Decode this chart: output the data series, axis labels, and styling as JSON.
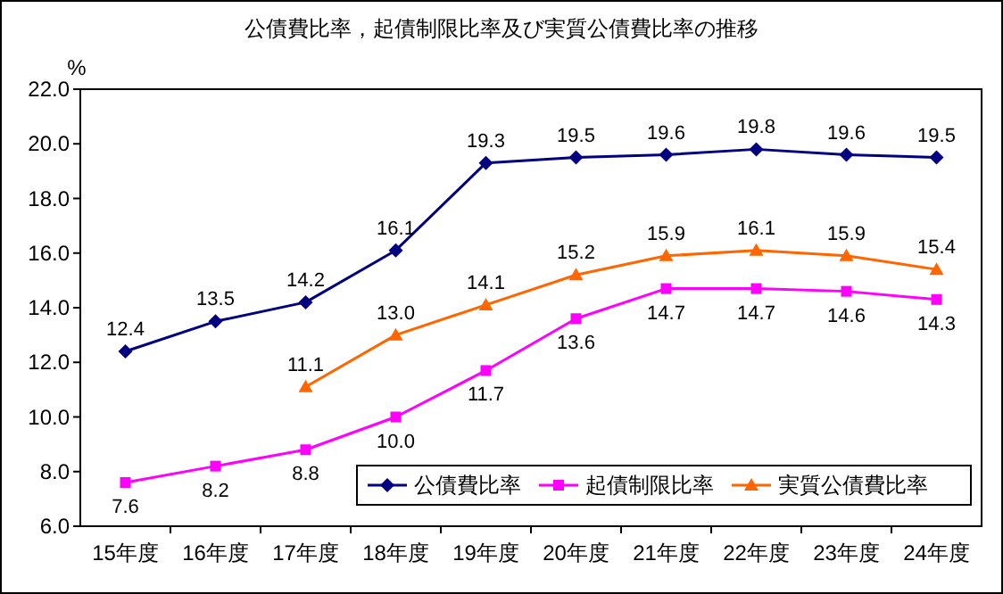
{
  "chart_data": {
    "type": "line",
    "title": "公債費比率，起債制限比率及び実質公債費比率の推移",
    "ylabel": "%",
    "categories": [
      "15年度",
      "16年度",
      "17年度",
      "18年度",
      "19年度",
      "20年度",
      "21年度",
      "22年度",
      "23年度",
      "24年度"
    ],
    "series": [
      {
        "name": "公債費比率",
        "color": "#000080",
        "marker": "diamond",
        "values": [
          12.4,
          13.5,
          14.2,
          16.1,
          19.3,
          19.5,
          19.6,
          19.8,
          19.6,
          19.5
        ],
        "value_labels": [
          "12.4",
          "13.5",
          "14.2",
          "16.1",
          "19.3",
          "19.5",
          "19.6",
          "19.8",
          "19.6",
          "19.5"
        ]
      },
      {
        "name": "起債制限比率",
        "color": "#ff00ff",
        "marker": "square",
        "values": [
          7.6,
          8.2,
          8.8,
          10.0,
          11.7,
          13.6,
          14.7,
          14.7,
          14.6,
          14.3
        ],
        "value_labels": [
          "7.6",
          "8.2",
          "8.8",
          "10.0",
          "11.7",
          "13.6",
          "14.7",
          "14.7",
          "14.6",
          "14.3"
        ]
      },
      {
        "name": "実質公債費比率",
        "color": "#ff6600",
        "marker": "triangle",
        "values": [
          null,
          null,
          11.1,
          13.0,
          14.1,
          15.2,
          15.9,
          16.1,
          15.9,
          15.4
        ],
        "value_labels": [
          null,
          null,
          "11.1",
          "13.0",
          "14.1",
          "15.2",
          "15.9",
          "16.1",
          "15.9",
          "15.4"
        ]
      }
    ],
    "ylim": [
      6,
      22
    ],
    "yticks": [
      {
        "value": 6,
        "label": "6.0"
      },
      {
        "value": 8,
        "label": "8.0"
      },
      {
        "value": 10,
        "label": "10.0"
      },
      {
        "value": 12,
        "label": "12.0"
      },
      {
        "value": 14,
        "label": "14.0"
      },
      {
        "value": 16,
        "label": "16.0"
      },
      {
        "value": 18,
        "label": "18.0"
      },
      {
        "value": 20,
        "label": "20.0"
      },
      {
        "value": 22,
        "label": "22.0"
      }
    ],
    "grid": false,
    "legend": "bottom right",
    "line_style": "solid"
  }
}
